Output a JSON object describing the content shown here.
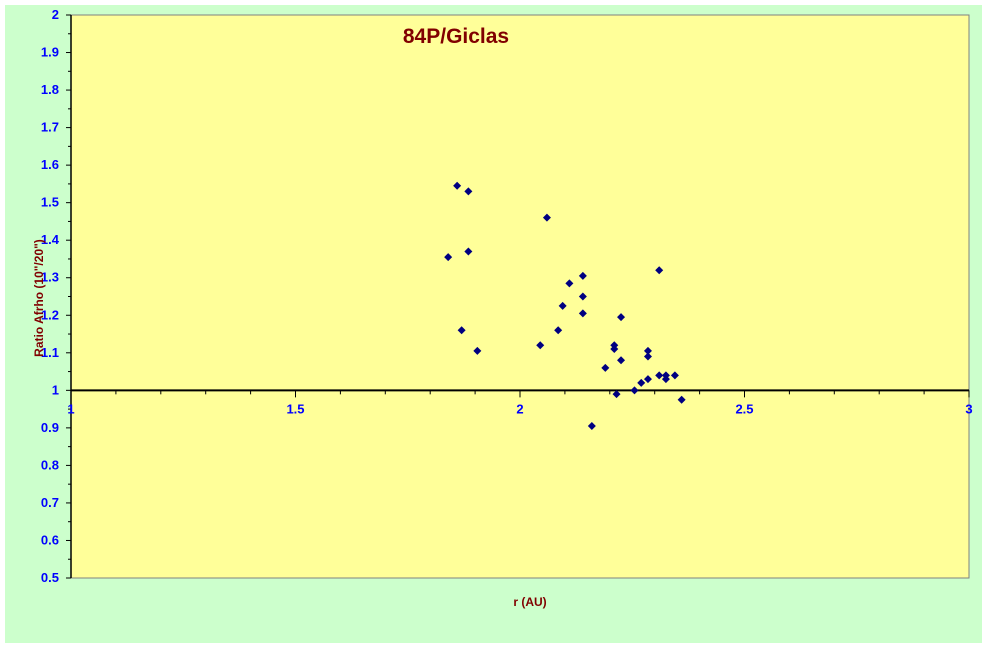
{
  "chart_data": {
    "type": "scatter",
    "title": "84P/Giclas",
    "xlabel": "r (AU)",
    "ylabel": "Ratio Afrho (10\"/20\")",
    "xlim": [
      1,
      3
    ],
    "ylim": [
      0.5,
      2
    ],
    "x_ticks": [
      "1",
      "1.5",
      "2",
      "2.5",
      "3"
    ],
    "y_ticks": [
      "0.5",
      "0.6",
      "0.7",
      "0.8",
      "0.9",
      "1",
      "1.1",
      "1.2",
      "1.3",
      "1.4",
      "1.5",
      "1.6",
      "1.7",
      "1.8",
      "1.9",
      "2"
    ],
    "x_axis_crosses_at": 1,
    "grid": false,
    "legend": "none",
    "series": [
      {
        "marker": "diamond",
        "points": [
          {
            "x": 1.84,
            "y": 1.355
          },
          {
            "x": 1.86,
            "y": 1.545
          },
          {
            "x": 1.87,
            "y": 1.16
          },
          {
            "x": 1.885,
            "y": 1.53
          },
          {
            "x": 1.885,
            "y": 1.37
          },
          {
            "x": 1.905,
            "y": 1.105
          },
          {
            "x": 2.045,
            "y": 1.12
          },
          {
            "x": 2.06,
            "y": 1.46
          },
          {
            "x": 2.085,
            "y": 1.16
          },
          {
            "x": 2.095,
            "y": 1.225
          },
          {
            "x": 2.11,
            "y": 1.285
          },
          {
            "x": 2.14,
            "y": 1.305
          },
          {
            "x": 2.14,
            "y": 1.25
          },
          {
            "x": 2.14,
            "y": 1.205
          },
          {
            "x": 2.16,
            "y": 0.905
          },
          {
            "x": 2.19,
            "y": 1.06
          },
          {
            "x": 2.21,
            "y": 1.12
          },
          {
            "x": 2.21,
            "y": 1.11
          },
          {
            "x": 2.215,
            "y": 0.99
          },
          {
            "x": 2.225,
            "y": 1.195
          },
          {
            "x": 2.225,
            "y": 1.08
          },
          {
            "x": 2.255,
            "y": 1.0
          },
          {
            "x": 2.27,
            "y": 1.02
          },
          {
            "x": 2.285,
            "y": 1.105
          },
          {
            "x": 2.285,
            "y": 1.09
          },
          {
            "x": 2.285,
            "y": 1.03
          },
          {
            "x": 2.31,
            "y": 1.32
          },
          {
            "x": 2.31,
            "y": 1.04
          },
          {
            "x": 2.325,
            "y": 1.04
          },
          {
            "x": 2.325,
            "y": 1.03
          },
          {
            "x": 2.345,
            "y": 1.04
          },
          {
            "x": 2.36,
            "y": 0.975
          }
        ]
      }
    ]
  },
  "colors": {
    "page_background": "#ccffcc",
    "plot_background": "#ffff99",
    "axis_line": "#000000",
    "tick_labels": "#0000ff",
    "title": "#800000",
    "axis_titles": "#800000",
    "markers": "#000080"
  }
}
